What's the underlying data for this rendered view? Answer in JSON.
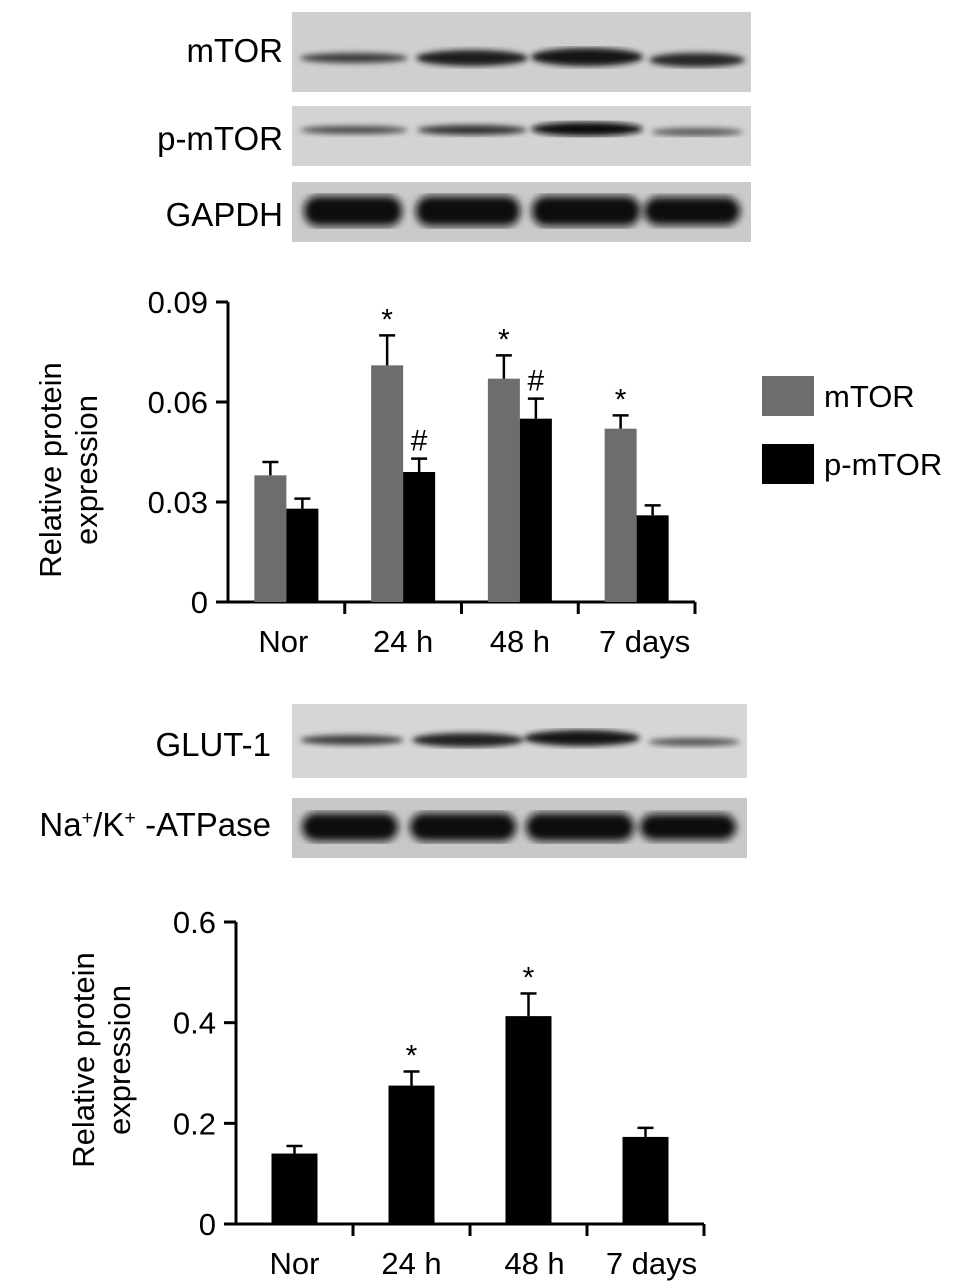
{
  "blots_top": {
    "labels": [
      "mTOR",
      "p-mTOR",
      "GAPDH"
    ]
  },
  "blots_bottom": {
    "glut_label": "GLUT-1",
    "atpase_label": {
      "a": "Na",
      "b": "+",
      "c": "/K",
      "d": "+",
      "e": " -ATPase"
    }
  },
  "chart_data": [
    {
      "type": "bar",
      "title": "",
      "ylabel": "Relative protein expression",
      "ylabel_lines": [
        "Relative protein",
        "expression"
      ],
      "xlabel": "",
      "categories": [
        "Nor",
        "24 h",
        "48 h",
        "7 days"
      ],
      "ylim": [
        0,
        0.09
      ],
      "yticks": [
        0,
        0.03,
        0.06,
        0.09
      ],
      "ytick_labels": [
        "0",
        "0.03",
        "0.06",
        "0.09"
      ],
      "legend_position": "right",
      "series": [
        {
          "name": "mTOR",
          "color": "#6d6d6d",
          "values": [
            0.038,
            0.071,
            0.067,
            0.052
          ],
          "errors": [
            0.004,
            0.009,
            0.007,
            0.004
          ],
          "marks": [
            "",
            "*",
            "*",
            "*"
          ]
        },
        {
          "name": "p-mTOR",
          "color": "#000000",
          "values": [
            0.028,
            0.039,
            0.055,
            0.026
          ],
          "errors": [
            0.003,
            0.004,
            0.006,
            0.003
          ],
          "marks": [
            "",
            "#",
            "#",
            ""
          ]
        }
      ]
    },
    {
      "type": "bar",
      "title": "",
      "ylabel": "Relative protein expression",
      "ylabel_lines": [
        "Relative protein",
        "expression"
      ],
      "xlabel": "",
      "categories": [
        "Nor",
        "24 h",
        "48 h",
        "7 days"
      ],
      "ylim": [
        0,
        0.6
      ],
      "yticks": [
        0,
        0.2,
        0.4,
        0.6
      ],
      "ytick_labels": [
        "0",
        "0.2",
        "0.4",
        "0.6"
      ],
      "series": [
        {
          "color": "#000000",
          "values": [
            0.14,
            0.275,
            0.413,
            0.173
          ],
          "errors": [
            0.015,
            0.028,
            0.045,
            0.018
          ],
          "marks": [
            "",
            "*",
            "*",
            ""
          ]
        }
      ]
    }
  ]
}
